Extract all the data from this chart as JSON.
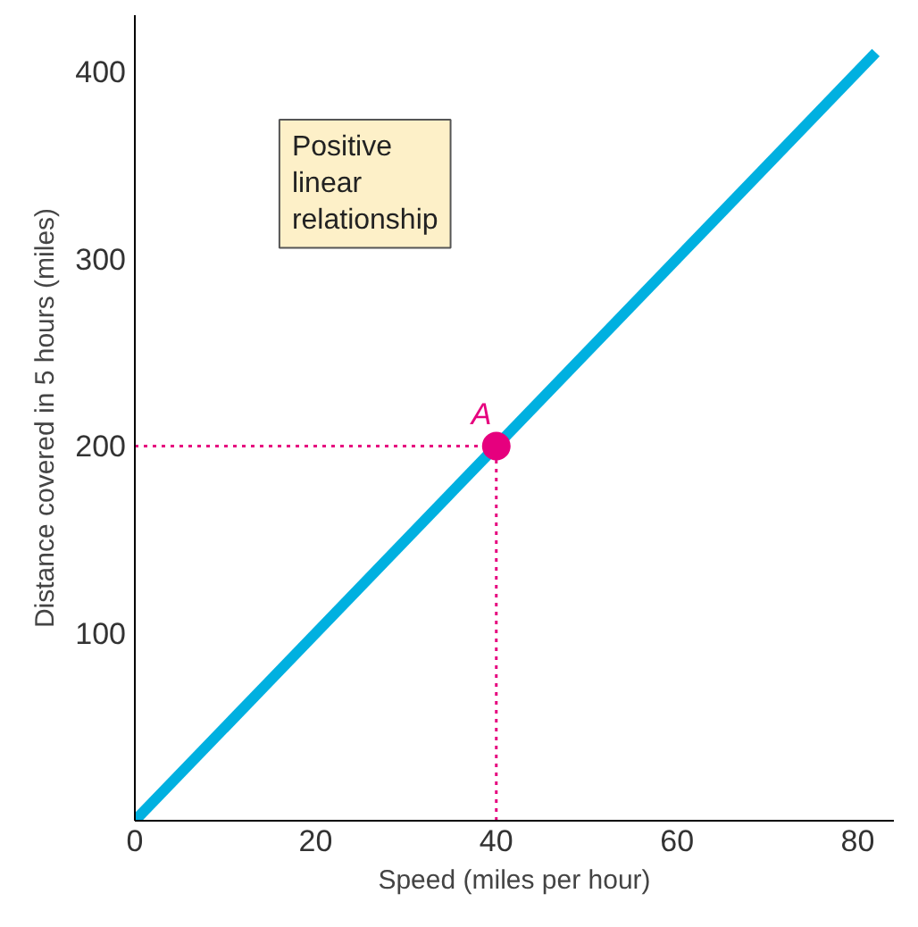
{
  "chart_data": {
    "type": "line",
    "xlabel": "Speed (miles per hour)",
    "ylabel": "Distance covered in 5 hours (miles)",
    "xlim": [
      0,
      84
    ],
    "ylim": [
      0,
      430
    ],
    "xticks": [
      {
        "value": 0,
        "label": "0"
      },
      20,
      40,
      60,
      80
    ],
    "yticks": [
      100,
      200,
      300,
      400
    ],
    "grid": false,
    "marker": "none",
    "series": [
      {
        "color": "#00b0e0",
        "x": [
          0,
          82
        ],
        "values": [
          0,
          410
        ],
        "line_style": "solid"
      },
      {
        "type": "line",
        "color": "#e6007e",
        "x": [
          0,
          40
        ],
        "values": [
          200,
          200
        ],
        "line_style": "dotted"
      },
      {
        "type": "line",
        "color": "#e6007e",
        "x": [
          40,
          40
        ],
        "values": [
          0,
          200
        ],
        "line_style": "dotted"
      },
      {
        "type": "scatter",
        "color": "#e6007e",
        "x": [
          40
        ],
        "values": [
          200
        ],
        "marker": "circle"
      }
    ],
    "annotations": [
      {
        "text": "A",
        "x": 40,
        "y": 200
      },
      "Positive\nlinear\nrelationship"
    ]
  }
}
